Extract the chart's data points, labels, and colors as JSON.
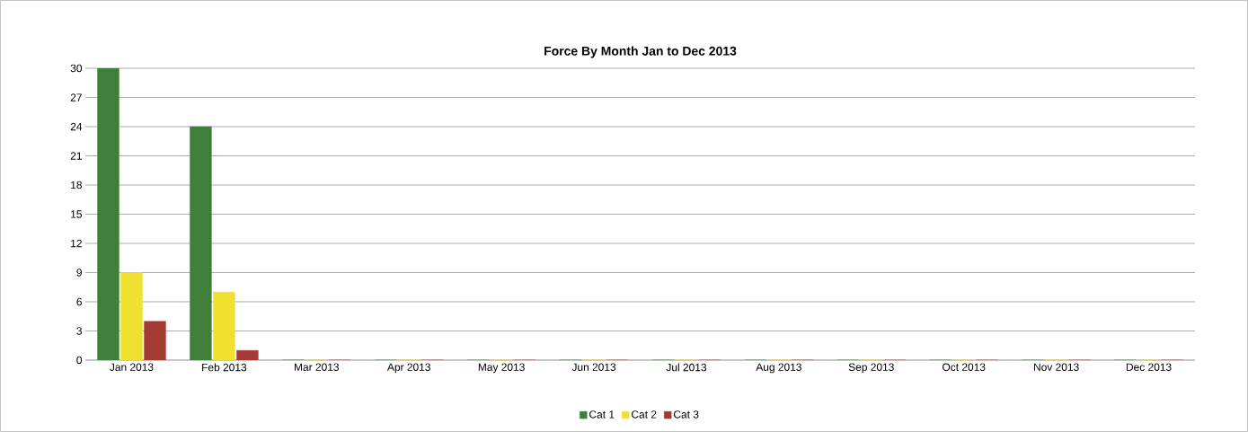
{
  "chart_data": {
    "type": "bar",
    "title": "Force By Month Jan to Dec 2013",
    "categories": [
      "Jan 2013",
      "Feb 2013",
      "Mar 2013",
      "Apr 2013",
      "May 2013",
      "Jun 2013",
      "Jul 2013",
      "Aug 2013",
      "Sep 2013",
      "Oct 2013",
      "Nov 2013",
      "Dec 2013"
    ],
    "series": [
      {
        "name": "Cat 1",
        "color": "#3f7f3a",
        "values": [
          30,
          24,
          0,
          0,
          0,
          0,
          0,
          0,
          0,
          0,
          0,
          0
        ]
      },
      {
        "name": "Cat 2",
        "color": "#f0e030",
        "values": [
          9,
          7,
          0,
          0,
          0,
          0,
          0,
          0,
          0,
          0,
          0,
          0
        ]
      },
      {
        "name": "Cat 3",
        "color": "#a33a33",
        "values": [
          4,
          1,
          0,
          0,
          0,
          0,
          0,
          0,
          0,
          0,
          0,
          0
        ]
      }
    ],
    "ylim": [
      0,
      30
    ],
    "yticks": [
      0,
      3,
      6,
      9,
      12,
      15,
      18,
      21,
      24,
      27,
      30
    ],
    "grid": "y",
    "legend": "bottom"
  }
}
